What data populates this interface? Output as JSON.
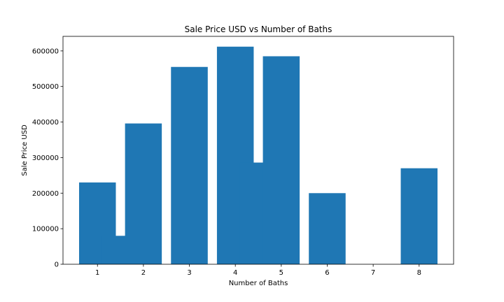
{
  "chart_data": {
    "type": "bar",
    "title": "Sale Price USD vs Number of Baths",
    "xlabel": "Number of Baths",
    "ylabel": "Sale Price USD",
    "x_ticks": [
      1,
      2,
      3,
      4,
      5,
      6,
      7,
      8
    ],
    "y_ticks": [
      0,
      100000,
      200000,
      300000,
      400000,
      500000,
      600000
    ],
    "xlim": [
      0.25,
      8.75
    ],
    "ylim": [
      0,
      641000
    ],
    "grid": false,
    "bar_width": 0.8,
    "bar_color": "#1f77b4",
    "series": [
      {
        "x": [
          1,
          1.5,
          2,
          3,
          4,
          4.5,
          5,
          6,
          8
        ],
        "values": [
          230000,
          80000,
          396000,
          555000,
          612000,
          286000,
          585000,
          200000,
          270000
        ]
      }
    ]
  }
}
